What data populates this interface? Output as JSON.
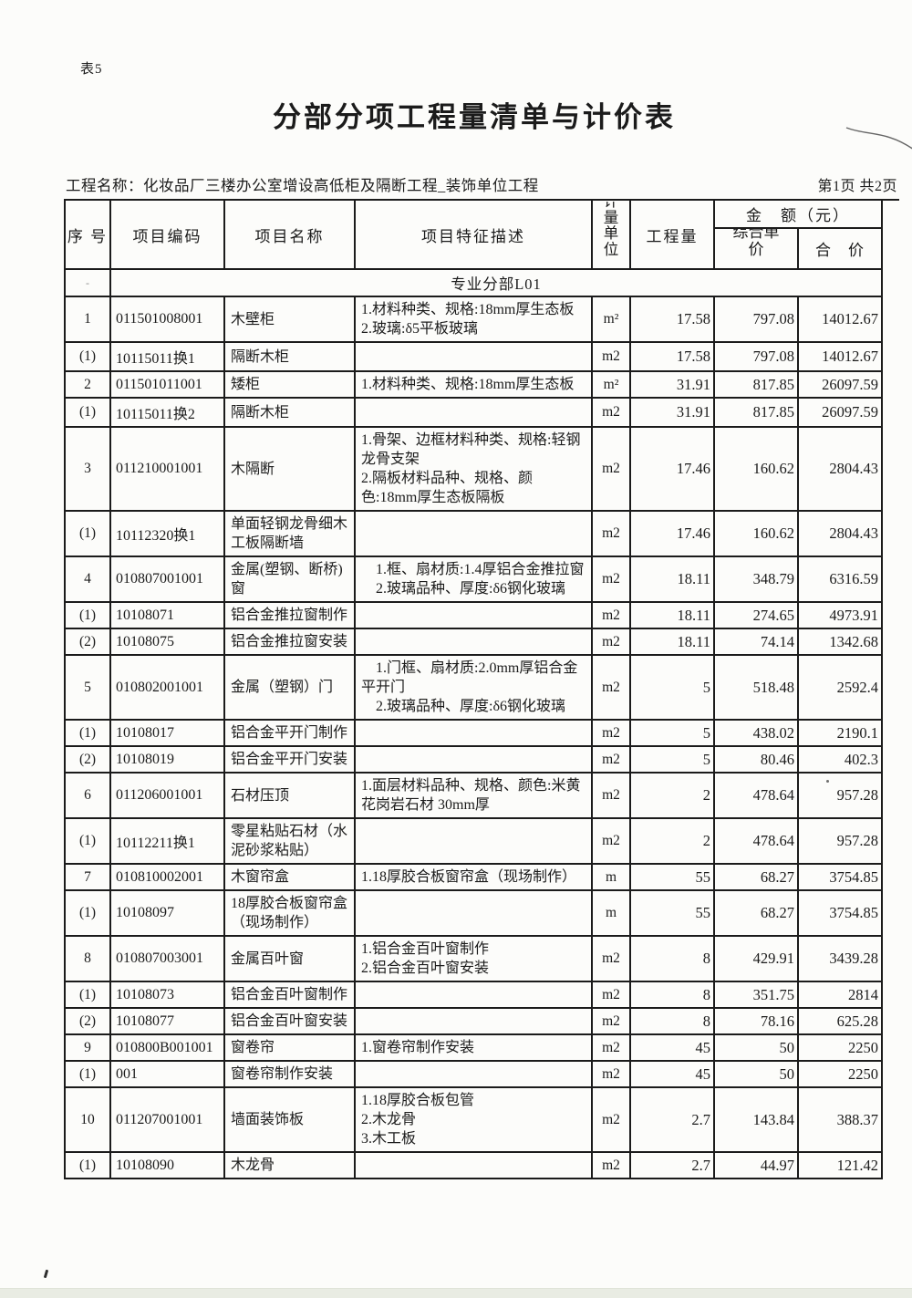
{
  "page": {
    "sheet_label": "表5",
    "title": "分部分项工程量清单与计价表",
    "project_label": "工程名称：化妆品厂三楼办公室增设高低柜及隔断工程_装饰单位工程",
    "page_info": "第1页 共2页"
  },
  "colors": {
    "paper": "#fcfcfa",
    "ink": "#1b1b1b",
    "table_border": "#1b1b1b",
    "footer_strip": "#e9ece3"
  },
  "table": {
    "headers": {
      "no": "序 号",
      "code": "项目编码",
      "name": "项目名称",
      "desc": "项目特征描述",
      "unit": "计量单位",
      "qty": "工程量",
      "amount": "金　额（元）",
      "unit_price": "综合单价",
      "total": "合　价"
    },
    "rows": [
      {
        "type": "section",
        "no": "-",
        "label": "专业分部L01"
      },
      {
        "no": "1",
        "code": "011501008001",
        "name": "木壁柜",
        "desc": "1.材料种类、规格:18mm厚生态板\n2.玻璃:δ5平板玻璃",
        "unit": "m²",
        "qty": "17.58",
        "price": "797.08",
        "total": "14012.67"
      },
      {
        "no": "(1)",
        "code": "10115011换1",
        "name": "隔断木柜",
        "desc": "",
        "unit": "m2",
        "qty": "17.58",
        "price": "797.08",
        "total": "14012.67"
      },
      {
        "no": "2",
        "code": "011501011001",
        "name": "矮柜",
        "desc": "1.材料种类、规格:18mm厚生态板",
        "unit": "m²",
        "qty": "31.91",
        "price": "817.85",
        "total": "26097.59"
      },
      {
        "no": "(1)",
        "code": "10115011换2",
        "name": "隔断木柜",
        "desc": "",
        "unit": "m2",
        "qty": "31.91",
        "price": "817.85",
        "total": "26097.59"
      },
      {
        "no": "3",
        "code": "011210001001",
        "name": "木隔断",
        "desc": "1.骨架、边框材料种类、规格:轻钢龙骨支架\n2.隔板材料品种、规格、颜色:18mm厚生态板隔板",
        "unit": "m2",
        "qty": "17.46",
        "price": "160.62",
        "total": "2804.43"
      },
      {
        "no": "(1)",
        "code": "10112320换1",
        "name": "单面轻钢龙骨细木工板隔断墙",
        "desc": "",
        "unit": "m2",
        "qty": "17.46",
        "price": "160.62",
        "total": "2804.43"
      },
      {
        "no": "4",
        "code": "010807001001",
        "name": "金属(塑钢、断桥)窗",
        "desc": "　1.框、扇材质:1.4厚铝合金推拉窗\n　2.玻璃品种、厚度:δ6钢化玻璃",
        "unit": "m2",
        "qty": "18.11",
        "price": "348.79",
        "total": "6316.59"
      },
      {
        "no": "(1)",
        "code": "10108071",
        "name": "铝合金推拉窗制作",
        "desc": "",
        "unit": "m2",
        "qty": "18.11",
        "price": "274.65",
        "total": "4973.91"
      },
      {
        "no": "(2)",
        "code": "10108075",
        "name": "铝合金推拉窗安装",
        "desc": "",
        "unit": "m2",
        "qty": "18.11",
        "price": "74.14",
        "total": "1342.68"
      },
      {
        "no": "5",
        "code": "010802001001",
        "name": "金属（塑钢）门",
        "desc": "　1.门框、扇材质:2.0mm厚铝合金平开门\n　2.玻璃品种、厚度:δ6钢化玻璃",
        "unit": "m2",
        "qty": "5",
        "price": "518.48",
        "total": "2592.4"
      },
      {
        "no": "(1)",
        "code": "10108017",
        "name": "铝合金平开门制作",
        "desc": "",
        "unit": "m2",
        "qty": "5",
        "price": "438.02",
        "total": "2190.1"
      },
      {
        "no": "(2)",
        "code": "10108019",
        "name": "铝合金平开门安装",
        "desc": "",
        "unit": "m2",
        "qty": "5",
        "price": "80.46",
        "total": "402.3"
      },
      {
        "no": "6",
        "code": "011206001001",
        "name": "石材压顶",
        "desc": "1.面层材料品种、规格、颜色:米黄花岗岩石材 30mm厚",
        "unit": "m2",
        "qty": "2",
        "price": "478.64",
        "total": "957.28"
      },
      {
        "no": "(1)",
        "code": "10112211换1",
        "name": "零星粘贴石材（水泥砂浆粘贴）",
        "desc": "",
        "unit": "m2",
        "qty": "2",
        "price": "478.64",
        "total": "957.28"
      },
      {
        "no": "7",
        "code": "010810002001",
        "name": "木窗帘盒",
        "desc": "1.18厚胶合板窗帘盒（现场制作）",
        "unit": "m",
        "qty": "55",
        "price": "68.27",
        "total": "3754.85"
      },
      {
        "no": "(1)",
        "code": "10108097",
        "name": "18厚胶合板窗帘盒（现场制作）",
        "desc": "",
        "unit": "m",
        "qty": "55",
        "price": "68.27",
        "total": "3754.85"
      },
      {
        "no": "8",
        "code": "010807003001",
        "name": "金属百叶窗",
        "desc": "1.铝合金百叶窗制作\n2.铝合金百叶窗安装",
        "unit": "m2",
        "qty": "8",
        "price": "429.91",
        "total": "3439.28"
      },
      {
        "no": "(1)",
        "code": "10108073",
        "name": "铝合金百叶窗制作",
        "desc": "",
        "unit": "m2",
        "qty": "8",
        "price": "351.75",
        "total": "2814"
      },
      {
        "no": "(2)",
        "code": "10108077",
        "name": "铝合金百叶窗安装",
        "desc": "",
        "unit": "m2",
        "qty": "8",
        "price": "78.16",
        "total": "625.28"
      },
      {
        "no": "9",
        "code": "010800B001001",
        "name": "窗卷帘",
        "desc": "1.窗卷帘制作安装",
        "unit": "m2",
        "qty": "45",
        "price": "50",
        "total": "2250"
      },
      {
        "no": "(1)",
        "code": "001",
        "name": "窗卷帘制作安装",
        "desc": "",
        "unit": "m2",
        "qty": "45",
        "price": "50",
        "total": "2250"
      },
      {
        "no": "10",
        "code": "011207001001",
        "name": "墙面装饰板",
        "desc": "1.18厚胶合板包管\n2.木龙骨\n3.木工板",
        "unit": "m2",
        "qty": "2.7",
        "price": "143.84",
        "total": "388.37"
      },
      {
        "no": "(1)",
        "code": "10108090",
        "name": "木龙骨",
        "desc": "",
        "unit": "m2",
        "qty": "2.7",
        "price": "44.97",
        "total": "121.42"
      }
    ]
  }
}
